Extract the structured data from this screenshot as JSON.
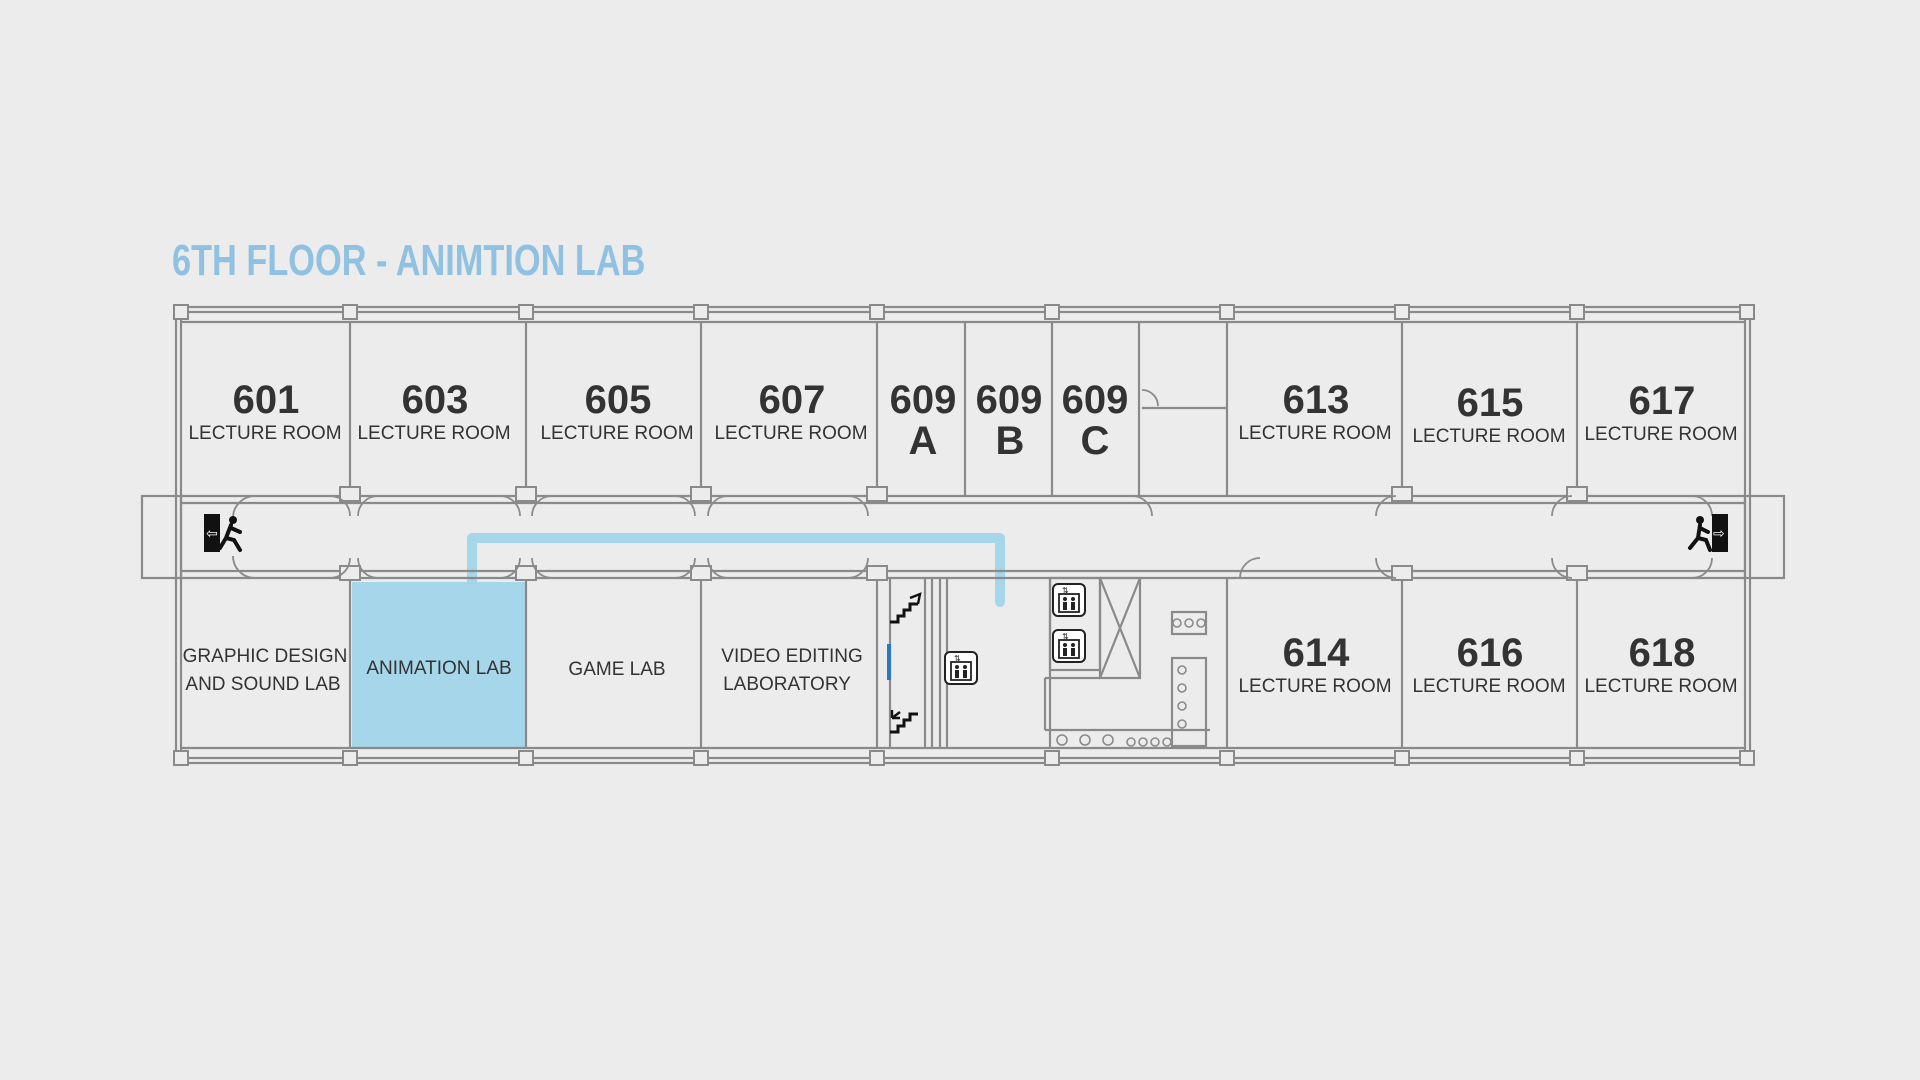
{
  "title": "6TH FLOOR - ANIMTION LAB",
  "colors": {
    "background": "#ececec",
    "accent": "#a6d6e9",
    "title": "#8fc1e3",
    "walls": "#8a8a8a",
    "text": "#333333"
  },
  "rooms": {
    "r601": {
      "number": "601",
      "label": "LECTURE ROOM"
    },
    "r603": {
      "number": "603",
      "label": "LECTURE ROOM"
    },
    "r605": {
      "number": "605",
      "label": "LECTURE ROOM"
    },
    "r607": {
      "number": "607",
      "label": "LECTURE ROOM"
    },
    "r609a": {
      "number": "609",
      "letter": "A"
    },
    "r609b": {
      "number": "609",
      "letter": "B"
    },
    "r609c": {
      "number": "609",
      "letter": "C"
    },
    "r613": {
      "number": "613",
      "label": "LECTURE ROOM"
    },
    "r615": {
      "number": "615",
      "label": "LECTURE ROOM"
    },
    "r617": {
      "number": "617",
      "label": "LECTURE ROOM"
    },
    "r614": {
      "number": "614",
      "label": "LECTURE ROOM"
    },
    "r616": {
      "number": "616",
      "label": "LECTURE ROOM"
    },
    "r618": {
      "number": "618",
      "label": "LECTURE ROOM"
    },
    "graphic": {
      "line1": "GRAPHIC DESIGN",
      "line2": "AND SOUND LAB"
    },
    "animation": {
      "label": "ANIMATION LAB",
      "highlighted": true
    },
    "game": {
      "label": "GAME LAB"
    },
    "video": {
      "line1": "VIDEO EDITING",
      "line2": "LABORATORY"
    }
  },
  "icons": [
    "emergency-exit-icon",
    "stairs-up-icon",
    "stairs-down-icon",
    "elevator-icon",
    "restroom-fixtures"
  ],
  "route": {
    "target": "ANIMATION LAB"
  }
}
